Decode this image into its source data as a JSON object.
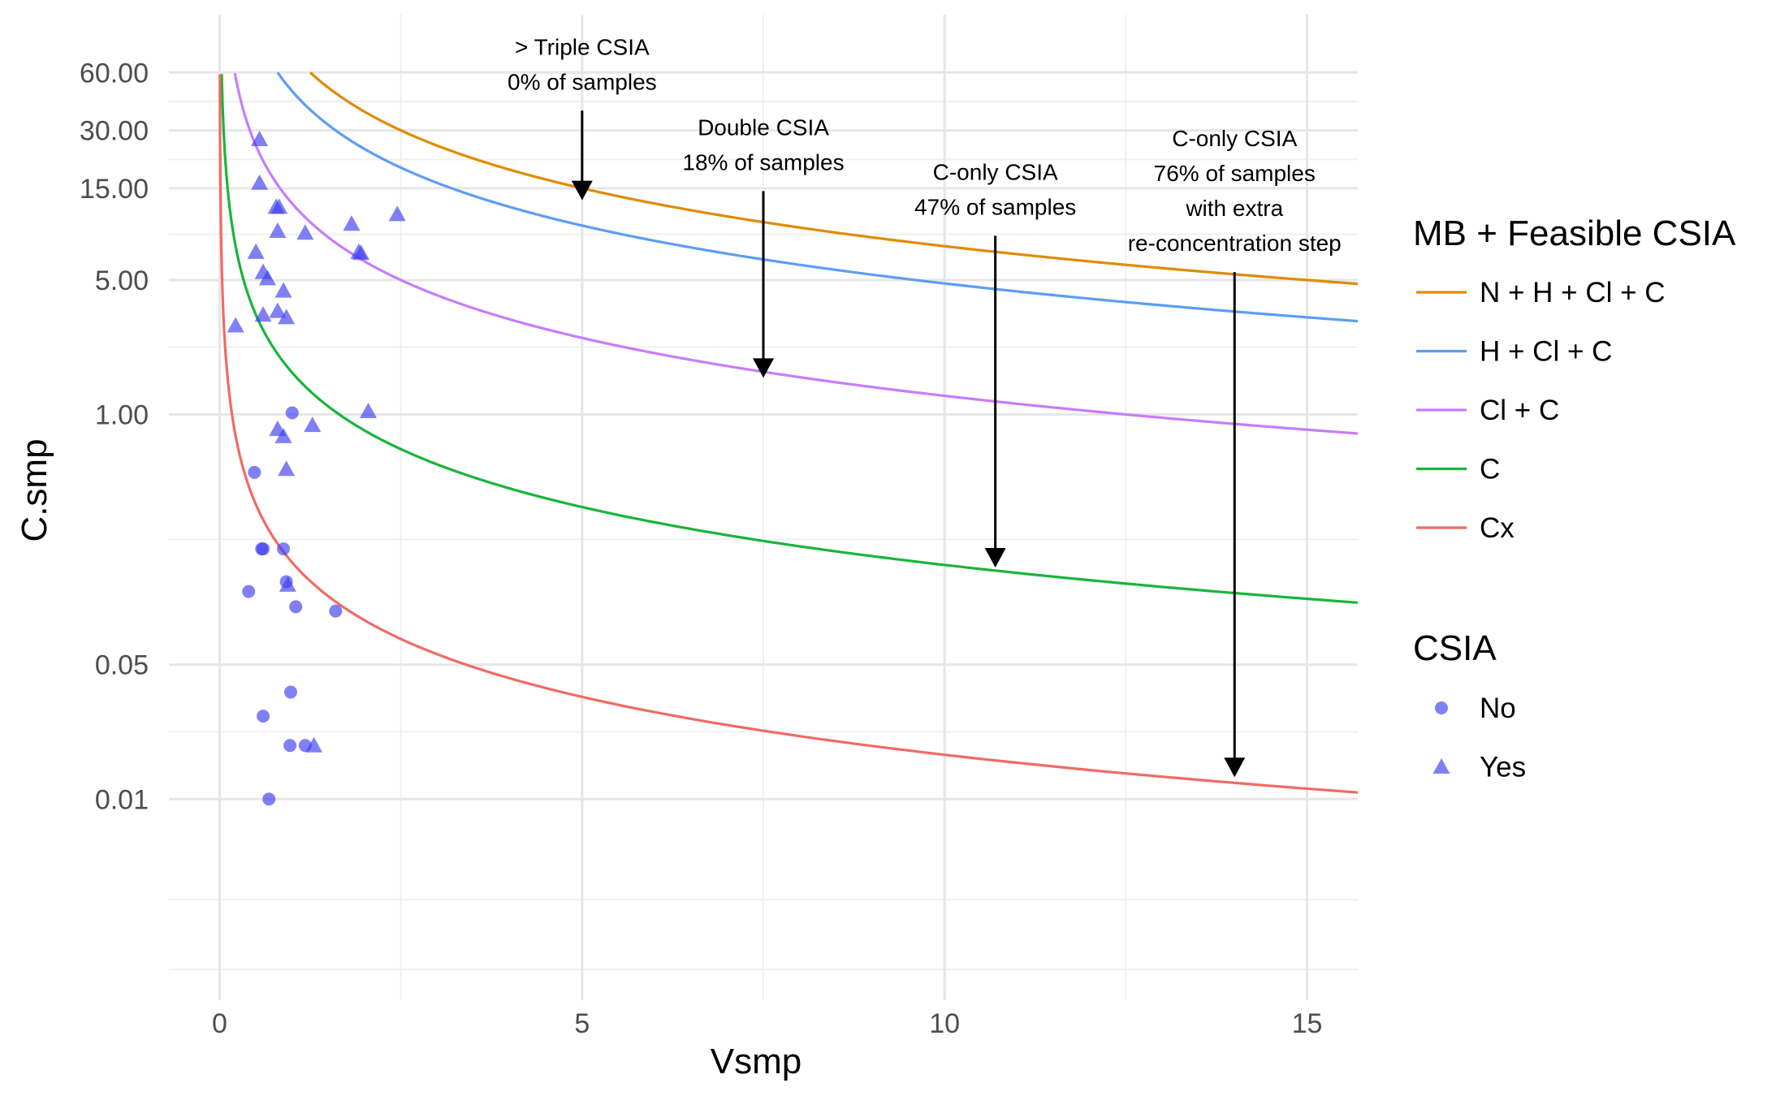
{
  "chart_data": {
    "type": "line",
    "xlabel": "Vsmp",
    "ylabel": "C.smp",
    "xlim": [
      -0.7,
      15.7
    ],
    "ylim": [
      0.0009,
      120
    ],
    "y_scale": "log",
    "x_ticks": [
      0,
      5,
      10,
      15
    ],
    "x_tick_labels": [
      "0",
      "5",
      "10",
      "15"
    ],
    "y_ticks": [
      60,
      30,
      15,
      5,
      1,
      0.05,
      0.01
    ],
    "y_tick_labels": [
      "60.00",
      "30.00",
      "15.00",
      "5.00",
      "1.00",
      "0.05",
      "0.01"
    ],
    "y_minor_ticks": [
      42.4,
      21.2,
      8.66,
      2.24,
      0.224,
      0.0224,
      0.003,
      0.0013
    ],
    "x_minor_ticks": [
      2.5,
      7.5,
      12.5
    ],
    "grid": true,
    "series": [
      {
        "name": "N + H + Cl + C",
        "color": "#E08B00",
        "k": 75,
        "x_start": 1.25,
        "x_end": 15.7
      },
      {
        "name": "H + Cl + C",
        "color": "#5C9DF5",
        "k": 48,
        "x_start": 0.8,
        "x_end": 15.7
      },
      {
        "name": "Cl + C",
        "color": "#C77CFF",
        "k": 12.5,
        "x_start": 0.18,
        "x_end": 15.7
      },
      {
        "name": "C",
        "color": "#18B53A",
        "k": 1.65,
        "x_start": 0.028,
        "x_end": 15.7
      },
      {
        "name": "Cx",
        "color": "#F06B63",
        "k": 0.17,
        "x_start": 0.0029,
        "x_end": 15.7
      }
    ],
    "points": [
      {
        "csia": "No",
        "x": 0.48,
        "y": 0.5
      },
      {
        "csia": "No",
        "x": 0.58,
        "y": 0.2
      },
      {
        "csia": "No",
        "x": 0.6,
        "y": 0.2
      },
      {
        "csia": "No",
        "x": 0.88,
        "y": 0.2
      },
      {
        "csia": "No",
        "x": 0.4,
        "y": 0.12
      },
      {
        "csia": "No",
        "x": 0.92,
        "y": 0.135
      },
      {
        "csia": "No",
        "x": 1.05,
        "y": 0.1
      },
      {
        "csia": "No",
        "x": 1.6,
        "y": 0.095
      },
      {
        "csia": "No",
        "x": 1.0,
        "y": 1.02
      },
      {
        "csia": "No",
        "x": 0.98,
        "y": 0.036
      },
      {
        "csia": "No",
        "x": 0.6,
        "y": 0.027
      },
      {
        "csia": "No",
        "x": 0.97,
        "y": 0.019
      },
      {
        "csia": "No",
        "x": 1.18,
        "y": 0.019
      },
      {
        "csia": "No",
        "x": 0.68,
        "y": 0.01
      },
      {
        "csia": "Yes",
        "x": 0.55,
        "y": 27
      },
      {
        "csia": "Yes",
        "x": 0.55,
        "y": 16
      },
      {
        "csia": "Yes",
        "x": 0.78,
        "y": 12
      },
      {
        "csia": "Yes",
        "x": 0.82,
        "y": 12
      },
      {
        "csia": "Yes",
        "x": 0.8,
        "y": 9
      },
      {
        "csia": "Yes",
        "x": 1.18,
        "y": 8.8
      },
      {
        "csia": "Yes",
        "x": 1.82,
        "y": 9.8
      },
      {
        "csia": "Yes",
        "x": 1.92,
        "y": 7.0
      },
      {
        "csia": "Yes",
        "x": 1.95,
        "y": 6.9
      },
      {
        "csia": "Yes",
        "x": 2.45,
        "y": 11
      },
      {
        "csia": "Yes",
        "x": 0.5,
        "y": 7.0
      },
      {
        "csia": "Yes",
        "x": 0.6,
        "y": 5.5
      },
      {
        "csia": "Yes",
        "x": 0.66,
        "y": 5.1
      },
      {
        "csia": "Yes",
        "x": 0.88,
        "y": 4.4
      },
      {
        "csia": "Yes",
        "x": 0.6,
        "y": 3.3
      },
      {
        "csia": "Yes",
        "x": 0.8,
        "y": 3.45
      },
      {
        "csia": "Yes",
        "x": 0.92,
        "y": 3.2
      },
      {
        "csia": "Yes",
        "x": 0.22,
        "y": 2.9
      },
      {
        "csia": "Yes",
        "x": 2.05,
        "y": 1.04
      },
      {
        "csia": "Yes",
        "x": 0.8,
        "y": 0.84
      },
      {
        "csia": "Yes",
        "x": 0.88,
        "y": 0.77
      },
      {
        "csia": "Yes",
        "x": 1.28,
        "y": 0.88
      },
      {
        "csia": "Yes",
        "x": 0.92,
        "y": 0.52
      },
      {
        "csia": "Yes",
        "x": 0.94,
        "y": 0.13
      },
      {
        "csia": "Yes",
        "x": 1.3,
        "y": 0.019
      }
    ],
    "point_color": "#3C3CF0",
    "annotations": [
      {
        "lines": [
          "> Triple CSIA",
          "0% of samples"
        ],
        "x": 5.0,
        "y_from": 38,
        "y_to": 13
      },
      {
        "lines": [
          "Double CSIA",
          "18% of samples"
        ],
        "x": 7.5,
        "y_from": 14.5,
        "y_to": 1.55
      },
      {
        "lines": [
          "C-only CSIA",
          "47% of samples"
        ],
        "x": 10.7,
        "y_from": 8.5,
        "y_to": 0.16
      },
      {
        "lines": [
          "C-only CSIA",
          "76% of samples",
          "with extra",
          "re-concentration step"
        ],
        "x": 14.0,
        "y_from": 5.5,
        "y_to": 0.013
      }
    ],
    "legends": [
      {
        "title": "MB + Feasible CSIA",
        "entries": [
          "N + H + Cl + C",
          "H + Cl + C",
          "Cl + C",
          "C",
          "Cx"
        ]
      },
      {
        "title": "CSIA",
        "entries": [
          "No",
          "Yes"
        ]
      }
    ]
  }
}
